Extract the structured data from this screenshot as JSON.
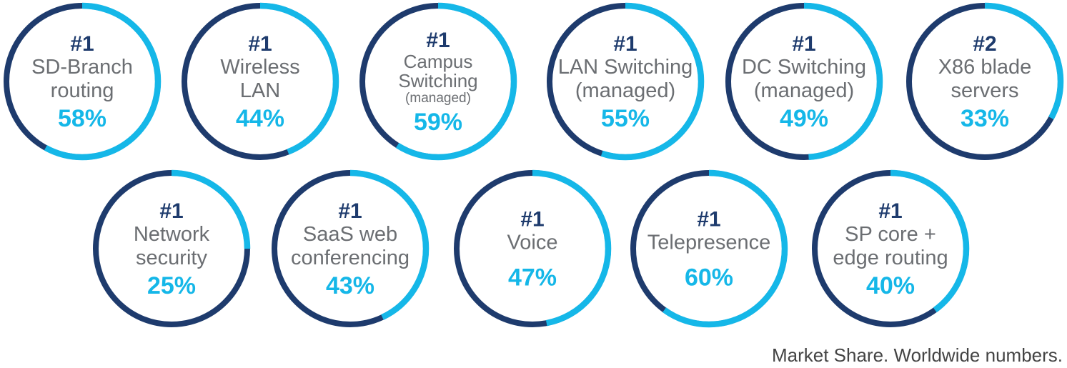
{
  "colors": {
    "ring_track": "#1e3b6d",
    "ring_fill": "#15b7e8",
    "rank": "#1e3b6d",
    "label": "#6b6e72",
    "percent": "#15b7e8"
  },
  "chart_data": {
    "type": "donut-grid",
    "items": [
      {
        "rank": "#1",
        "label": [
          "SD-Branch",
          "routing"
        ],
        "value": 58,
        "display": "58%"
      },
      {
        "rank": "#1",
        "label": [
          "Wireless",
          "LAN"
        ],
        "value": 44,
        "display": "44%"
      },
      {
        "rank": "#1",
        "label": [
          "Campus",
          "Switching",
          "(managed)"
        ],
        "value": 59,
        "display": "59%"
      },
      {
        "rank": "#1",
        "label": [
          "LAN Switching",
          "(managed)"
        ],
        "value": 55,
        "display": "55%"
      },
      {
        "rank": "#1",
        "label": [
          "DC Switching",
          "(managed)"
        ],
        "value": 49,
        "display": "49%"
      },
      {
        "rank": "#2",
        "label": [
          "X86 blade",
          "servers"
        ],
        "value": 33,
        "display": "33%"
      },
      {
        "rank": "#1",
        "label": [
          "Network",
          "security"
        ],
        "value": 25,
        "display": "25%"
      },
      {
        "rank": "#1",
        "label": [
          "SaaS web",
          "conferencing"
        ],
        "value": 43,
        "display": "43%"
      },
      {
        "rank": "#1",
        "label": [
          "Voice"
        ],
        "value": 47,
        "display": "47%"
      },
      {
        "rank": "#1",
        "label": [
          "Telepresence"
        ],
        "value": 60,
        "display": "60%"
      },
      {
        "rank": "#1",
        "label": [
          "SP core +",
          "edge routing"
        ],
        "value": 40,
        "display": "40%"
      }
    ]
  },
  "footer": "Market Share. Worldwide numbers."
}
